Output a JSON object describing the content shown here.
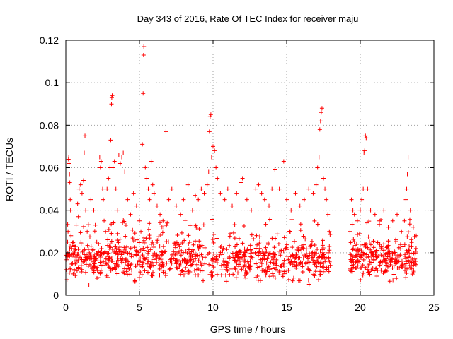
{
  "chart_data": {
    "type": "scatter",
    "title": "Day 343 of 2016, Rate Of TEC Index for receiver maju",
    "xlabel": "GPS time / hours",
    "ylabel": "ROTI / TECUs",
    "xlim": [
      0,
      25
    ],
    "ylim": [
      0,
      0.12
    ],
    "xticks": [
      "0",
      "5",
      "10",
      "15",
      "20",
      "25"
    ],
    "yticks": [
      "0",
      "0.02",
      "0.04",
      "0.06",
      "0.08",
      "0.1",
      "0.12"
    ],
    "xtick_values": [
      0,
      5,
      10,
      15,
      20,
      25
    ],
    "ytick_values": [
      0,
      0.02,
      0.04,
      0.06,
      0.08,
      0.1,
      0.12
    ],
    "grid": true,
    "marker": "+",
    "color": "#ff0000",
    "series": [
      {
        "name": "ROTI",
        "points": [
          [
            0.05,
            0.012
          ],
          [
            0.1,
            0.018
          ],
          [
            0.12,
            0.025
          ],
          [
            0.15,
            0.03
          ],
          [
            0.18,
            0.064
          ],
          [
            0.2,
            0.065
          ],
          [
            0.22,
            0.062
          ],
          [
            0.25,
            0.057
          ],
          [
            0.27,
            0.053
          ],
          [
            0.3,
            0.045
          ],
          [
            0.32,
            0.04
          ],
          [
            0.35,
            0.028
          ],
          [
            0.4,
            0.022
          ],
          [
            0.45,
            0.015
          ],
          [
            0.5,
            0.01
          ],
          [
            0.6,
            0.02
          ],
          [
            0.7,
            0.033
          ],
          [
            0.8,
            0.043
          ],
          [
            0.85,
            0.037
          ],
          [
            0.9,
            0.05
          ],
          [
            1.0,
            0.052
          ],
          [
            1.1,
            0.048
          ],
          [
            1.2,
            0.054
          ],
          [
            1.25,
            0.067
          ],
          [
            1.3,
            0.075
          ],
          [
            1.35,
            0.04
          ],
          [
            1.45,
            0.03
          ],
          [
            1.6,
            0.02
          ],
          [
            1.7,
            0.045
          ],
          [
            1.9,
            0.04
          ],
          [
            2.0,
            0.033
          ],
          [
            2.1,
            0.025
          ],
          [
            2.3,
            0.065
          ],
          [
            2.35,
            0.06
          ],
          [
            2.4,
            0.063
          ],
          [
            2.5,
            0.05
          ],
          [
            2.55,
            0.045
          ],
          [
            2.6,
            0.035
          ],
          [
            2.7,
            0.03
          ],
          [
            2.8,
            0.05
          ],
          [
            2.9,
            0.055
          ],
          [
            3.0,
            0.06
          ],
          [
            3.05,
            0.073
          ],
          [
            3.1,
            0.09
          ],
          [
            3.12,
            0.093
          ],
          [
            3.15,
            0.094
          ],
          [
            3.2,
            0.06
          ],
          [
            3.3,
            0.063
          ],
          [
            3.4,
            0.05
          ],
          [
            3.5,
            0.04
          ],
          [
            3.6,
            0.066
          ],
          [
            3.7,
            0.062
          ],
          [
            3.8,
            0.065
          ],
          [
            3.9,
            0.067
          ],
          [
            4.0,
            0.058
          ],
          [
            4.2,
            0.045
          ],
          [
            4.4,
            0.038
          ],
          [
            4.6,
            0.048
          ],
          [
            4.8,
            0.042
          ],
          [
            5.0,
            0.035
          ],
          [
            5.1,
            0.03
          ],
          [
            5.2,
            0.071
          ],
          [
            5.25,
            0.095
          ],
          [
            5.28,
            0.113
          ],
          [
            5.3,
            0.117
          ],
          [
            5.4,
            0.06
          ],
          [
            5.5,
            0.055
          ],
          [
            5.6,
            0.05
          ],
          [
            5.7,
            0.045
          ],
          [
            5.8,
            0.063
          ],
          [
            5.9,
            0.052
          ],
          [
            6.0,
            0.048
          ],
          [
            6.2,
            0.042
          ],
          [
            6.4,
            0.038
          ],
          [
            6.6,
            0.035
          ],
          [
            6.8,
            0.077
          ],
          [
            7.0,
            0.045
          ],
          [
            7.2,
            0.05
          ],
          [
            7.5,
            0.042
          ],
          [
            7.8,
            0.038
          ],
          [
            8.0,
            0.045
          ],
          [
            8.3,
            0.052
          ],
          [
            8.6,
            0.04
          ],
          [
            8.8,
            0.047
          ],
          [
            9.0,
            0.045
          ],
          [
            9.2,
            0.05
          ],
          [
            9.4,
            0.048
          ],
          [
            9.6,
            0.052
          ],
          [
            9.7,
            0.058
          ],
          [
            9.75,
            0.077
          ],
          [
            9.8,
            0.084
          ],
          [
            9.85,
            0.085
          ],
          [
            9.9,
            0.065
          ],
          [
            10.0,
            0.07
          ],
          [
            10.1,
            0.068
          ],
          [
            10.2,
            0.06
          ],
          [
            10.3,
            0.055
          ],
          [
            10.5,
            0.048
          ],
          [
            10.8,
            0.045
          ],
          [
            11.0,
            0.05
          ],
          [
            11.3,
            0.042
          ],
          [
            11.6,
            0.048
          ],
          [
            11.9,
            0.053
          ],
          [
            12.0,
            0.055
          ],
          [
            12.3,
            0.045
          ],
          [
            12.6,
            0.04
          ],
          [
            12.9,
            0.05
          ],
          [
            13.1,
            0.052
          ],
          [
            13.3,
            0.048
          ],
          [
            13.5,
            0.045
          ],
          [
            13.8,
            0.042
          ],
          [
            14.0,
            0.05
          ],
          [
            14.2,
            0.059
          ],
          [
            14.5,
            0.05
          ],
          [
            14.8,
            0.063
          ],
          [
            15.0,
            0.045
          ],
          [
            15.3,
            0.04
          ],
          [
            15.6,
            0.048
          ],
          [
            15.9,
            0.042
          ],
          [
            16.2,
            0.045
          ],
          [
            16.5,
            0.05
          ],
          [
            16.8,
            0.048
          ],
          [
            17.0,
            0.052
          ],
          [
            17.1,
            0.06
          ],
          [
            17.2,
            0.065
          ],
          [
            17.25,
            0.078
          ],
          [
            17.3,
            0.082
          ],
          [
            17.35,
            0.086
          ],
          [
            17.4,
            0.088
          ],
          [
            17.5,
            0.055
          ],
          [
            17.6,
            0.05
          ],
          [
            17.7,
            0.045
          ],
          [
            17.8,
            0.038
          ],
          [
            17.9,
            0.03
          ],
          [
            19.3,
            0.03
          ],
          [
            19.4,
            0.045
          ],
          [
            19.5,
            0.04
          ],
          [
            19.6,
            0.038
          ],
          [
            19.8,
            0.035
          ],
          [
            20.0,
            0.04
          ],
          [
            20.1,
            0.045
          ],
          [
            20.2,
            0.05
          ],
          [
            20.25,
            0.067
          ],
          [
            20.3,
            0.068
          ],
          [
            20.35,
            0.075
          ],
          [
            20.4,
            0.074
          ],
          [
            20.5,
            0.05
          ],
          [
            20.7,
            0.04
          ],
          [
            21.0,
            0.038
          ],
          [
            21.3,
            0.035
          ],
          [
            21.6,
            0.04
          ],
          [
            21.9,
            0.032
          ],
          [
            22.2,
            0.035
          ],
          [
            22.5,
            0.038
          ],
          [
            22.8,
            0.03
          ],
          [
            23.0,
            0.035
          ],
          [
            23.1,
            0.045
          ],
          [
            23.15,
            0.05
          ],
          [
            23.2,
            0.057
          ],
          [
            23.25,
            0.065
          ],
          [
            23.4,
            0.04
          ],
          [
            23.6,
            0.032
          ],
          [
            23.8,
            0.028
          ]
        ],
        "density_bands": [
          {
            "x_range": [
              0.0,
              18.0
            ],
            "y_range": [
              0.003,
              0.03
            ],
            "y_center": 0.016,
            "count": 900
          },
          {
            "x_range": [
              19.3,
              23.8
            ],
            "y_range": [
              0.004,
              0.03
            ],
            "y_center": 0.016,
            "count": 260
          }
        ]
      }
    ]
  }
}
